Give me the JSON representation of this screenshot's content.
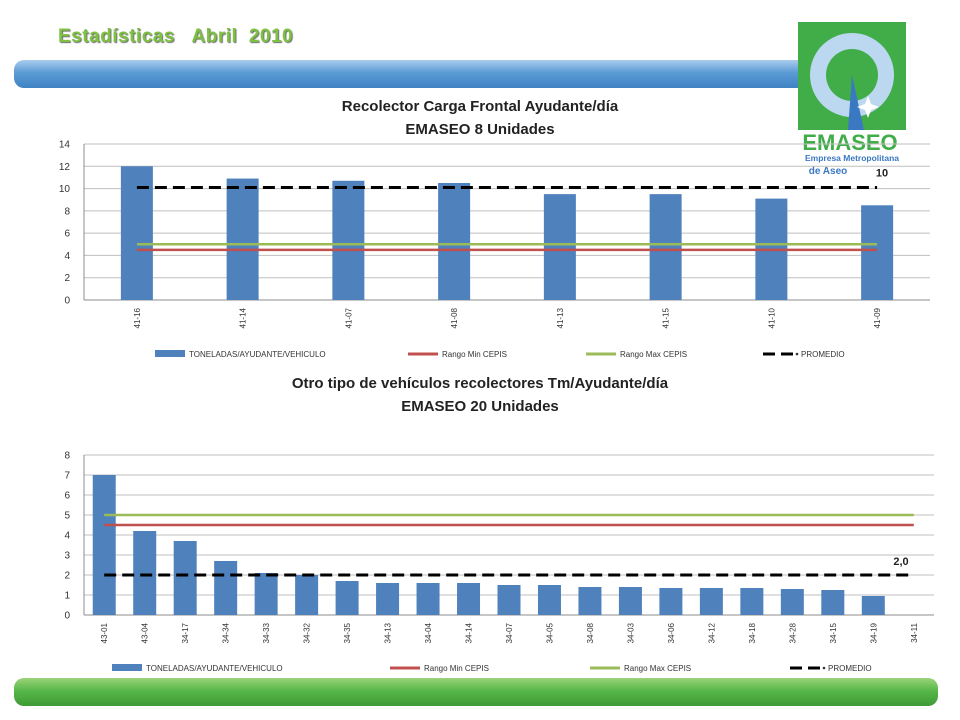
{
  "header": {
    "title": "Estadísticas   Abril  2010"
  },
  "logo": {
    "brand": "EMASEO",
    "line1": "Empresa Metropolitana",
    "line2": "de Aseo",
    "colors": {
      "green": "#41ad49",
      "blue": "#3b78c2",
      "light_blue": "#bcd8f0"
    }
  },
  "colors": {
    "bars": "#4f81bd",
    "rango_min": "#c0504d",
    "rango_max": "#9bbb59",
    "promedio": "#000000",
    "grid": "#bfbfbf",
    "band_top": "#5b9bd5",
    "band_bottom": "#58b848",
    "title_green": "#7ec242"
  },
  "chart_data": [
    {
      "type": "bar",
      "title": "Recolector Carga Frontal Ayudante/día",
      "subtitle": "EMASEO 8 Unidades",
      "categories": [
        "41-16",
        "41-14",
        "41-07",
        "41-08",
        "41-13",
        "41-15",
        "41-10",
        "41-09"
      ],
      "series": [
        {
          "name": "TONELADAS/AYUDANTE/VEHICULO",
          "kind": "bar",
          "values": [
            12.0,
            10.9,
            10.7,
            10.5,
            9.5,
            9.5,
            9.1,
            8.5
          ]
        },
        {
          "name": "Rango Min CEPIS",
          "kind": "line",
          "values": [
            4.5,
            4.5,
            4.5,
            4.5,
            4.5,
            4.5,
            4.5,
            4.5
          ]
        },
        {
          "name": "Rango Max CEPIS",
          "kind": "line",
          "values": [
            5,
            5,
            5,
            5,
            5,
            5,
            5,
            5
          ]
        },
        {
          "name": "PROMEDIO",
          "kind": "dashed",
          "values": [
            10.1,
            10.1,
            10.1,
            10.1,
            10.1,
            10.1,
            10.1,
            10.1
          ]
        }
      ],
      "annotation": "10",
      "ylim": [
        0,
        14
      ],
      "yticks": [
        0,
        2,
        4,
        6,
        8,
        10,
        12,
        14
      ],
      "grid": true,
      "legend_position": "bottom"
    },
    {
      "type": "bar",
      "title": "Otro tipo de vehículos recolectores Tm/Ayudante/día",
      "subtitle": "EMASEO 20 Unidades",
      "categories": [
        "43-01",
        "43-04",
        "34-17",
        "34-34",
        "34-33",
        "34-32",
        "34-35",
        "34-13",
        "34-04",
        "34-14",
        "34-07",
        "34-05",
        "34-08",
        "34-03",
        "34-06",
        "34-12",
        "34-18",
        "34-28",
        "34-15",
        "34-19",
        "34-11"
      ],
      "series": [
        {
          "name": "TONELADAS/AYUDANTE/VEHICULO",
          "kind": "bar",
          "values": [
            7.0,
            4.2,
            3.7,
            2.7,
            2.1,
            2.0,
            1.7,
            1.6,
            1.6,
            1.6,
            1.5,
            1.5,
            1.4,
            1.4,
            1.35,
            1.35,
            1.35,
            1.3,
            1.25,
            0.95,
            0
          ]
        },
        {
          "name": "Rango Min CEPIS",
          "kind": "line",
          "values": [
            4.5,
            4.5,
            4.5,
            4.5,
            4.5,
            4.5,
            4.5,
            4.5,
            4.5,
            4.5,
            4.5,
            4.5,
            4.5,
            4.5,
            4.5,
            4.5,
            4.5,
            4.5,
            4.5,
            4.5,
            4.5
          ]
        },
        {
          "name": "Rango Max CEPIS",
          "kind": "line",
          "values": [
            5,
            5,
            5,
            5,
            5,
            5,
            5,
            5,
            5,
            5,
            5,
            5,
            5,
            5,
            5,
            5,
            5,
            5,
            5,
            5,
            5
          ]
        },
        {
          "name": "PROMEDIO",
          "kind": "dashed",
          "values": [
            2,
            2,
            2,
            2,
            2,
            2,
            2,
            2,
            2,
            2,
            2,
            2,
            2,
            2,
            2,
            2,
            2,
            2,
            2,
            2,
            2
          ]
        }
      ],
      "annotation": "2,0",
      "ylim": [
        0,
        8
      ],
      "yticks": [
        0,
        1,
        2,
        3,
        4,
        5,
        6,
        7,
        8
      ],
      "grid": true,
      "legend_position": "bottom"
    }
  ]
}
